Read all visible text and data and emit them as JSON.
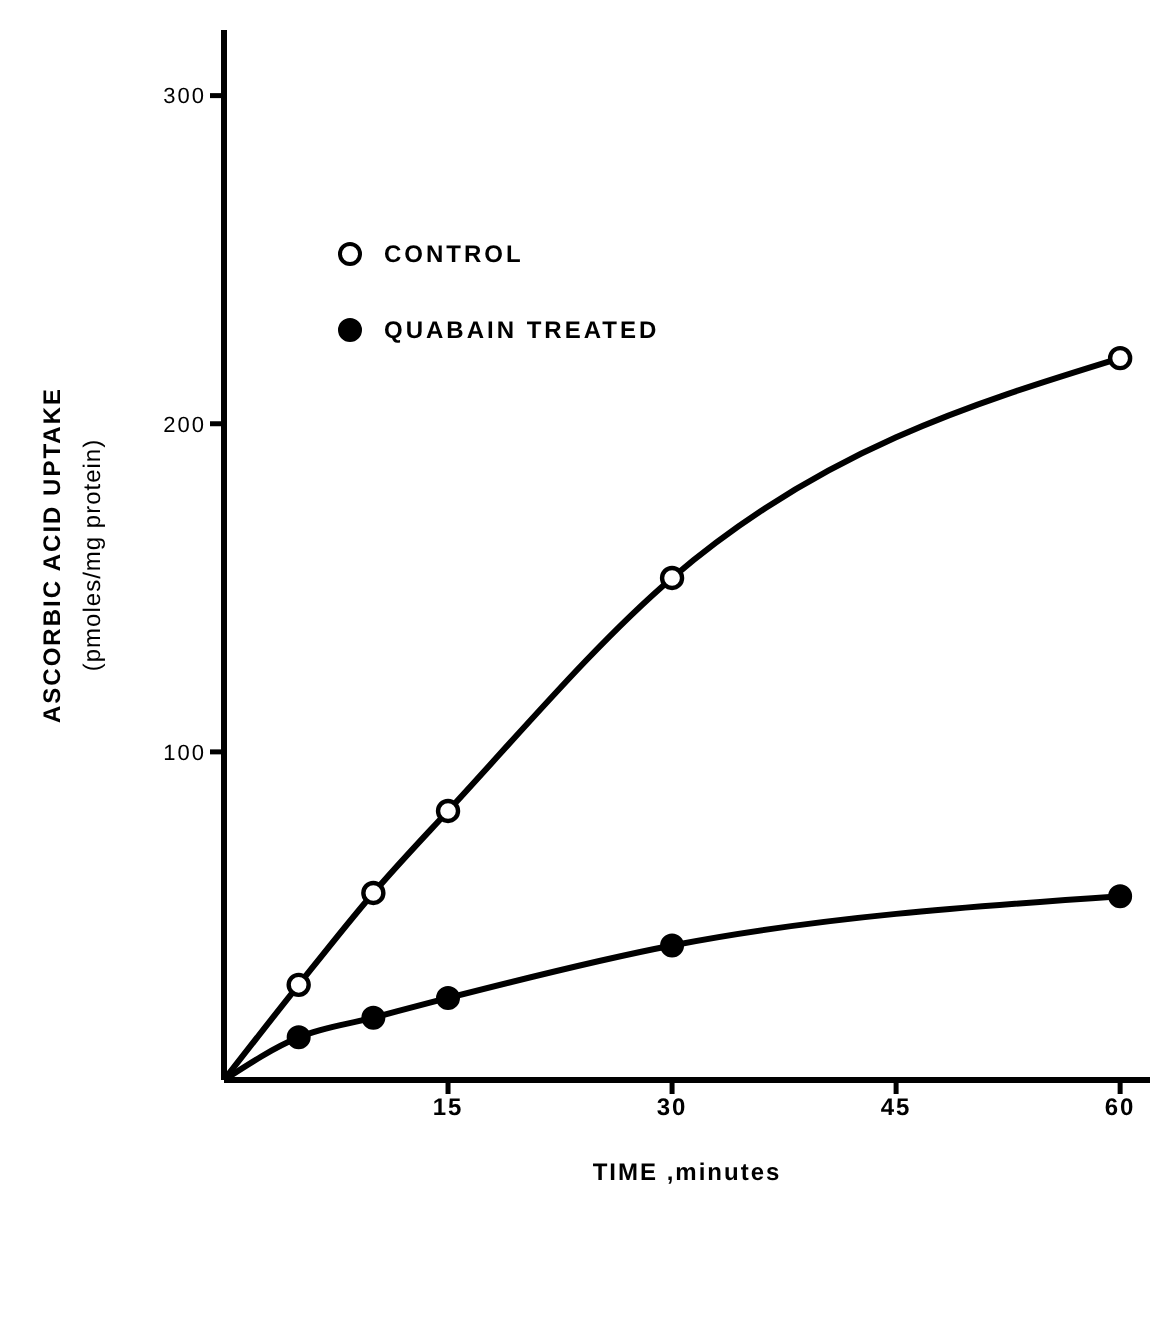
{
  "chart_data": {
    "type": "line",
    "xlabel": "TIME ,minutes",
    "ylabel": "ASCORBIC ACID UPTAKE\n(pmoles/mg protein)",
    "x": [
      0,
      5,
      10,
      15,
      30,
      60
    ],
    "series": [
      {
        "name": "CONTROL",
        "color": "#000000",
        "marker": "circle-open",
        "values": [
          0,
          29,
          57,
          82,
          153,
          220
        ]
      },
      {
        "name": "QUABAIN TREATED",
        "color": "#000000",
        "marker": "circle",
        "values": [
          0,
          13,
          19,
          25,
          41,
          56
        ]
      }
    ],
    "xlim": [
      0,
      62
    ],
    "xticks": [
      15,
      30,
      45,
      60
    ],
    "ylim": [
      0,
      320
    ],
    "yticks": [
      100,
      200,
      300
    ],
    "grid": false,
    "legend": "top left",
    "line_style": "solid"
  }
}
